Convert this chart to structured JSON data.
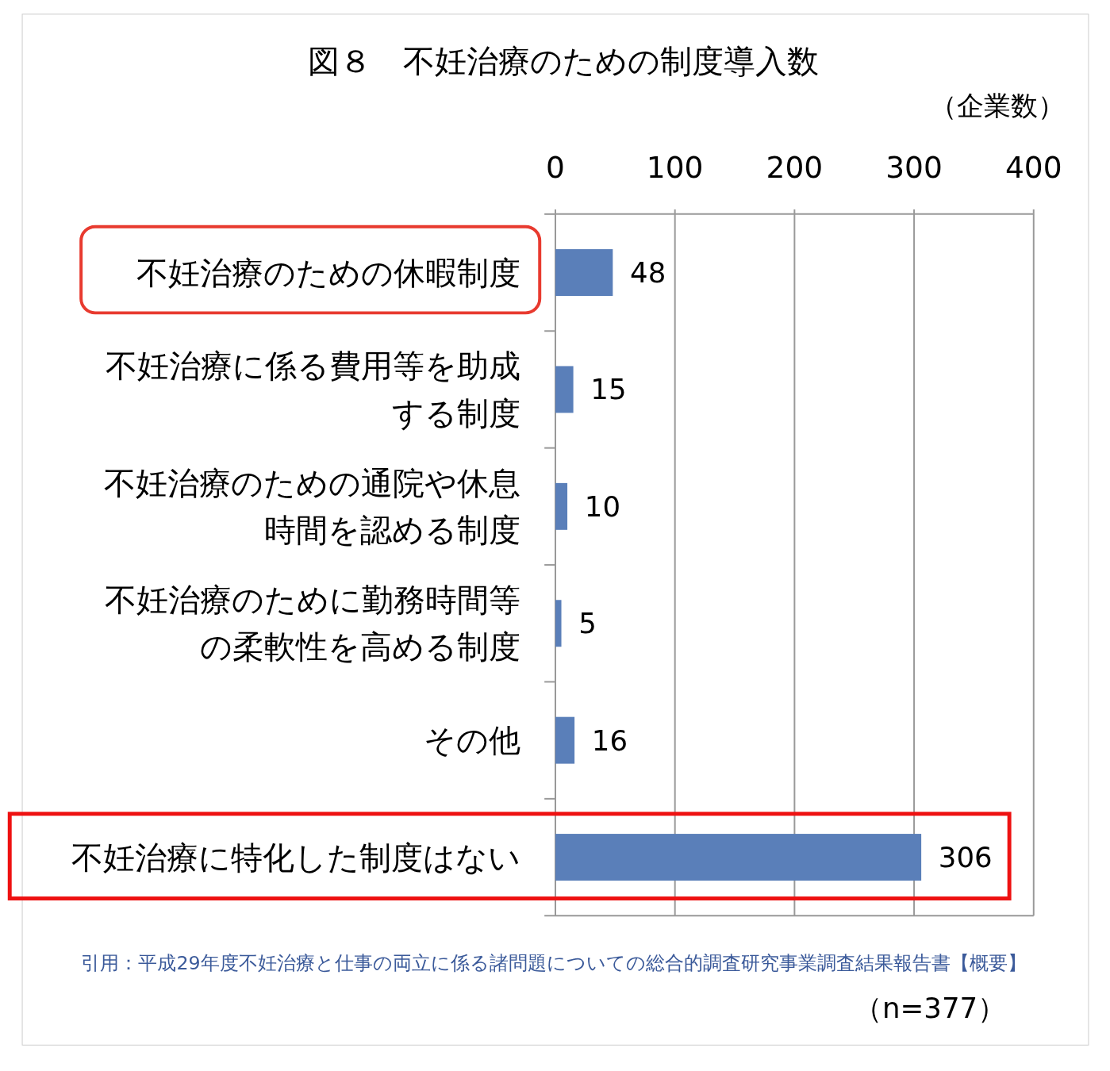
{
  "chart_data": {
    "type": "bar",
    "orientation": "horizontal",
    "title": "図８　不妊治療のための制度導入数",
    "categories": [
      "不妊治療のための休暇制度",
      "不妊治療に係る費用等を助成する制度",
      "不妊治療のための通院や休息時間を認める制度",
      "不妊治療のために勤務時間等の柔軟性を高める制度",
      "その他",
      "不妊治療に特化した制度はない"
    ],
    "values": [
      48,
      15,
      10,
      5,
      16,
      306
    ],
    "color": "#5a7fb9",
    "xlim": [
      0,
      400
    ],
    "xticks": [
      0,
      100,
      200,
      300,
      400
    ],
    "grid": "x",
    "data_labels": true,
    "annotations": [
      "（企業数）",
      "引用：平成29年度不妊治療と仕事の両立に係る諸問題についての総合的調査研究事業調査結果報告書【概要】",
      "（n=377）"
    ]
  }
}
